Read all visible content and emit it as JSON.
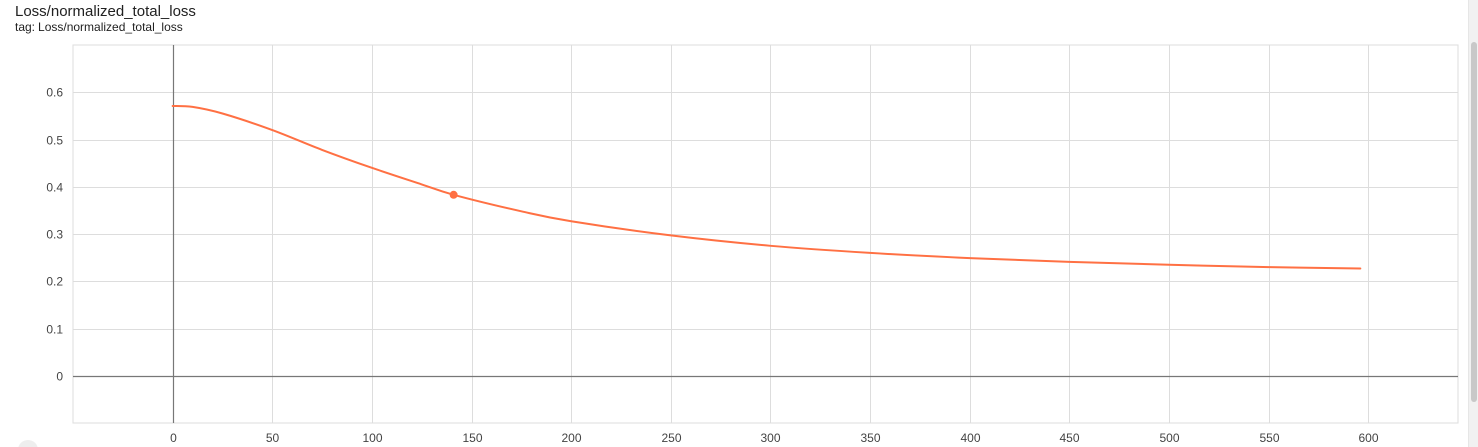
{
  "card": {
    "title": "Loss/normalized_total_loss",
    "tag_prefix": "tag:",
    "tag_value": "Loss/normalized_total_loss"
  },
  "colors": {
    "series": "#ff7043",
    "grid": "#dddddd",
    "axis": "#777777",
    "text": "#444444"
  },
  "chart_data": {
    "type": "line",
    "title": "Loss/normalized_total_loss",
    "xlabel": "",
    "ylabel": "",
    "xlim": [
      -50,
      645
    ],
    "ylim": [
      -0.1,
      0.7
    ],
    "x_ticks": [
      0,
      50,
      100,
      150,
      200,
      250,
      300,
      350,
      400,
      450,
      500,
      550,
      600
    ],
    "y_ticks": [
      0,
      0.1,
      0.2,
      0.3,
      0.4,
      0.5,
      0.6
    ],
    "grid": true,
    "series": [
      {
        "x": [
          0,
          10,
          25,
          50,
          75,
          100,
          125,
          141,
          175,
          200,
          250,
          300,
          350,
          400,
          450,
          500,
          550,
          596
        ],
        "values": [
          0.571,
          0.569,
          0.555,
          0.52,
          0.478,
          0.44,
          0.405,
          0.383,
          0.348,
          0.327,
          0.297,
          0.275,
          0.26,
          0.249,
          0.241,
          0.235,
          0.23,
          0.227
        ]
      }
    ],
    "highlight_point": {
      "x": 141,
      "y": 0.383
    }
  }
}
